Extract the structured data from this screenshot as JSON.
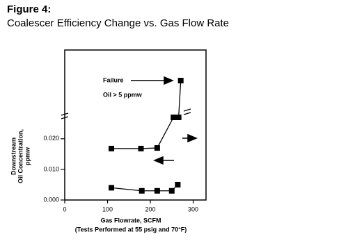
{
  "chart_data": {
    "type": "scatter",
    "title": "Figure 4:",
    "subtitle": "Coalescer Efficiency Change vs. Gas Flow Rate",
    "y_label": [
      "Downstream",
      "Oil Concentration,",
      "ppmw"
    ],
    "x_label": "Gas Flowrate, SCFM",
    "note": "(Tests Performed at 55 psig and 70°F)",
    "annotations": [
      "Failure",
      "Oil > 5 ppmw"
    ],
    "series": [
      {
        "color": "#000000",
        "x": [
          109,
          178,
          216,
          254,
          266,
          271
        ],
        "values": [
          0.0168,
          0.0168,
          0.017,
          0.027,
          0.027,
          0.039
        ]
      },
      {
        "color": "#000000",
        "x": [
          109,
          180,
          216,
          250,
          264
        ],
        "values": [
          0.004,
          0.003,
          0.003,
          0.003,
          0.005
        ]
      }
    ],
    "xlim": [
      0,
      330
    ],
    "xticks": [
      0,
      100,
      200,
      300
    ],
    "ylim": [
      0,
      0.049
    ],
    "yticks": [
      {
        "value": 0,
        "label": "0.000"
      },
      {
        "value": 0.01,
        "label": "0.010"
      },
      {
        "value": 0.02,
        "label": "0.020"
      }
    ]
  }
}
